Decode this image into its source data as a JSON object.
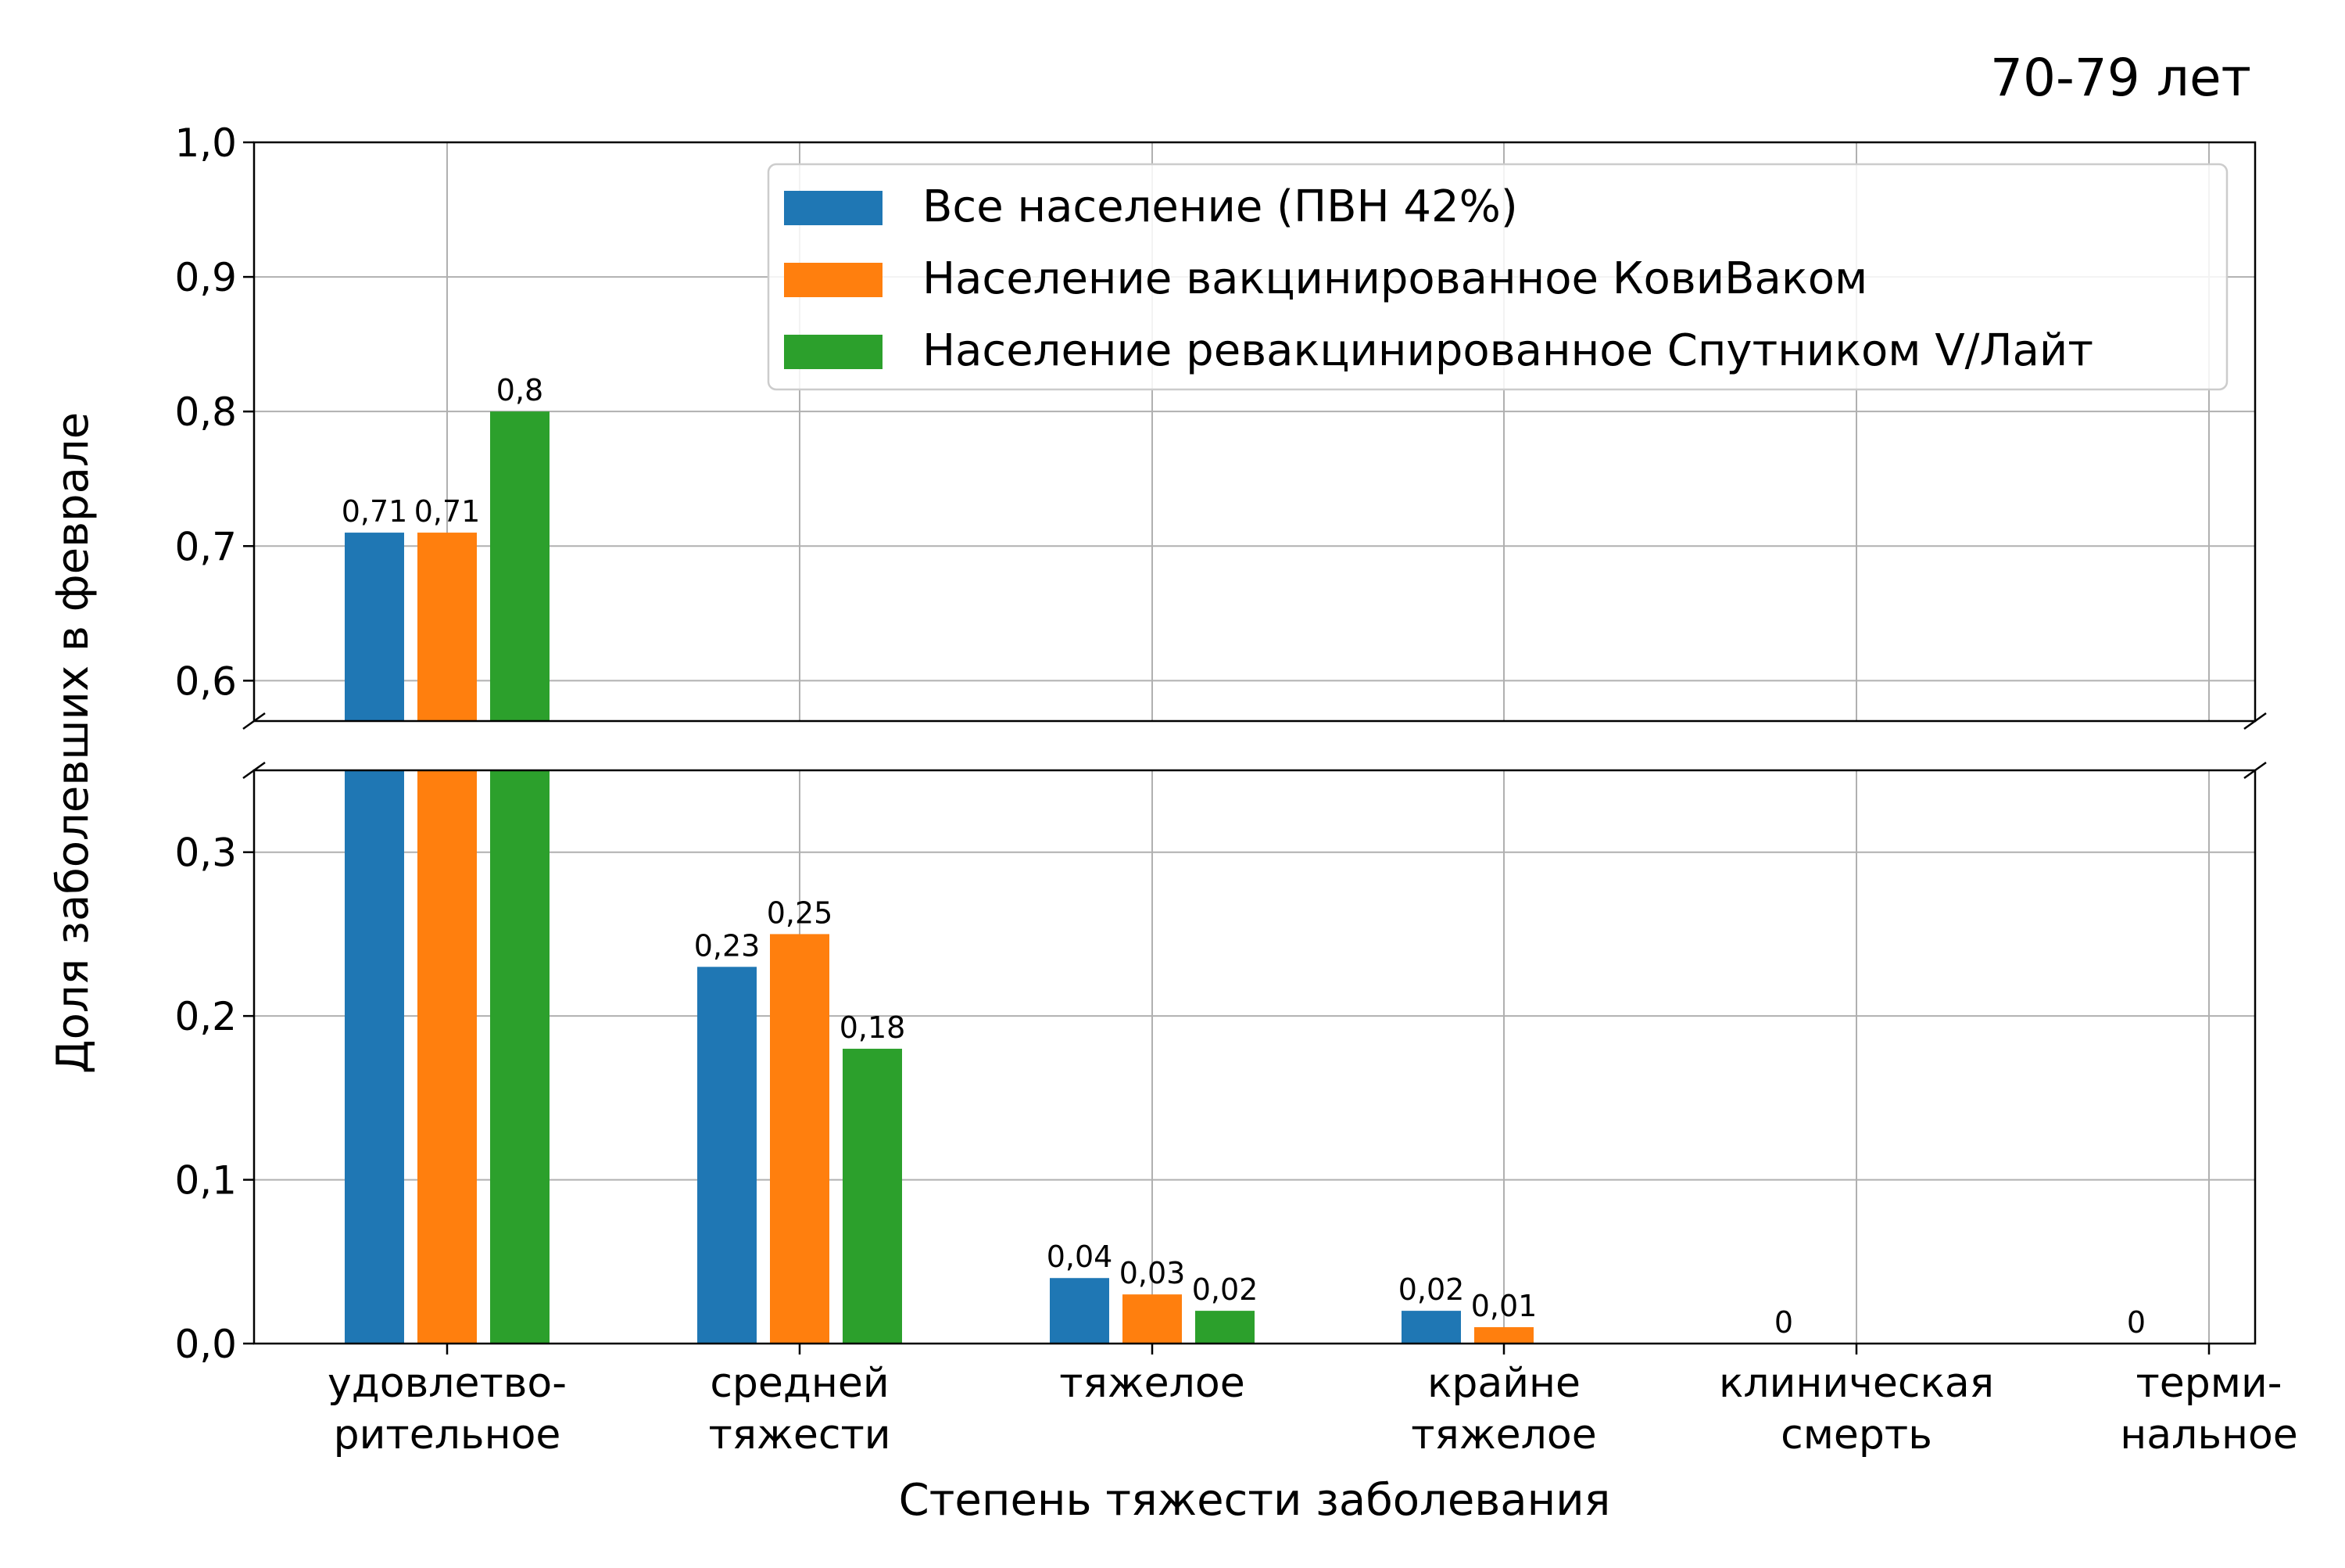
{
  "chart_data": {
    "type": "bar",
    "title": "70-79 лет",
    "xlabel": "Степень тяжести заболевания",
    "ylabel": "Доля заболевших в феврале",
    "categories": [
      [
        "удовлетво-",
        "рительное"
      ],
      [
        "средней",
        "тяжести"
      ],
      [
        "тяжелое"
      ],
      [
        "крайне",
        "тяжелое"
      ],
      [
        "клиническая",
        "смерть"
      ],
      [
        "терми-",
        "нальное"
      ]
    ],
    "series": [
      {
        "name": "Все население (ПВН 42%)",
        "color": "#1f77b4",
        "values": [
          0.71,
          0.23,
          0.04,
          0.02,
          0,
          0
        ],
        "labels": [
          "0,71",
          "0,23",
          "0,04",
          "0,02",
          "0",
          "0"
        ]
      },
      {
        "name": "Население вакцинированное КовиВаком",
        "color": "#ff7f0e",
        "values": [
          0.71,
          0.25,
          0.03,
          0.01,
          0,
          0
        ],
        "labels": [
          "0,71",
          "0,25",
          "0,03",
          "0,01",
          "",
          ""
        ]
      },
      {
        "name": "Население ревакцинированное Спутником V/Лайт",
        "color": "#2ca02c",
        "values": [
          0.8,
          0.18,
          0.02,
          0,
          0,
          0
        ],
        "labels": [
          "0,8",
          "0,18",
          "0,02",
          "",
          "",
          ""
        ]
      }
    ],
    "broken_axis": true,
    "upper_ylim": [
      0.57,
      1.0
    ],
    "lower_ylim": [
      0.0,
      0.35
    ],
    "upper_ticks": [
      "1,0",
      "0,9",
      "0,8",
      "0,7",
      "0,6"
    ],
    "lower_ticks": [
      "0,3",
      "0,2",
      "0,1",
      "0,0"
    ],
    "grid": true,
    "legend_position": "top-right"
  }
}
